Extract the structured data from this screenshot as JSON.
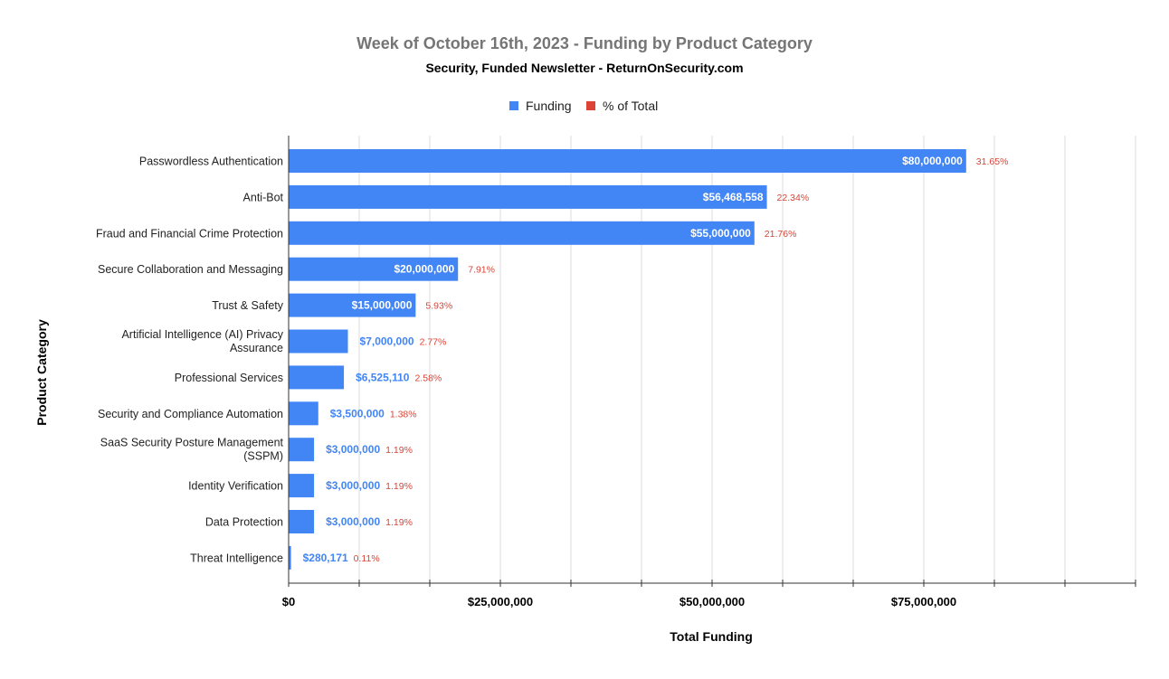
{
  "chart_data": {
    "type": "bar",
    "orientation": "horizontal",
    "title": "Week of October 16th, 2023 - Funding by Product Category",
    "subtitle": "Security, Funded Newsletter - ReturnOnSecurity.com",
    "xlabel": "Total Funding",
    "ylabel": "Product Category",
    "xlim": [
      0,
      100000000
    ],
    "x_ticks": [
      0,
      25000000,
      50000000,
      75000000
    ],
    "x_tick_labels": [
      "$0",
      "$25,000,000",
      "$50,000,000",
      "$75,000,000"
    ],
    "grid": true,
    "legend_position": "top",
    "legend": [
      {
        "name": "Funding",
        "color": "#4285f4"
      },
      {
        "name": "% of Total",
        "color": "#db4437"
      }
    ],
    "categories": [
      [
        "Passwordless Authentication"
      ],
      [
        "Anti-Bot"
      ],
      [
        "Fraud and Financial Crime Protection"
      ],
      [
        "Secure Collaboration and Messaging"
      ],
      [
        "Trust & Safety"
      ],
      [
        "Artificial Intelligence (AI) Privacy",
        "Assurance"
      ],
      [
        "Professional Services"
      ],
      [
        "Security and Compliance Automation"
      ],
      [
        "SaaS Security Posture Management",
        "(SSPM)"
      ],
      [
        "Identity Verification"
      ],
      [
        "Data Protection"
      ],
      [
        "Threat Intelligence"
      ]
    ],
    "series": [
      {
        "name": "Funding",
        "color": "#4285f4",
        "values": [
          80000000,
          56468558,
          55000000,
          20000000,
          15000000,
          7000000,
          6525110,
          3500000,
          3000000,
          3000000,
          3000000,
          280171
        ],
        "labels": [
          "$80,000,000",
          "$56,468,558",
          "$55,000,000",
          "$20,000,000",
          "$15,000,000",
          "$7,000,000",
          "$6,525,110",
          "$3,500,000",
          "$3,000,000",
          "$3,000,000",
          "$3,000,000",
          "$280,171"
        ]
      },
      {
        "name": "% of Total",
        "color": "#db4437",
        "values": [
          31.65,
          22.34,
          21.76,
          7.91,
          5.93,
          2.77,
          2.58,
          1.38,
          1.19,
          1.19,
          1.19,
          0.11
        ],
        "labels": [
          "31.65%",
          "22.34%",
          "21.76%",
          "7.91%",
          "5.93%",
          "2.77%",
          "2.58%",
          "1.38%",
          "1.19%",
          "1.19%",
          "1.19%",
          "0.11%"
        ]
      }
    ]
  }
}
